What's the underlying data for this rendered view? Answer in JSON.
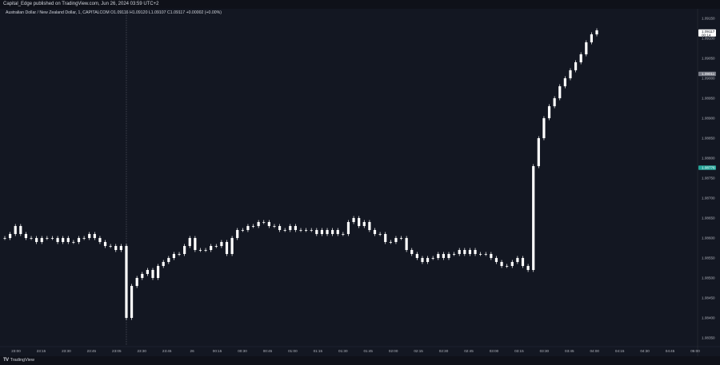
{
  "header": {
    "publisher_text": "Capital_Edge published on TradingView.com, Jun 26, 2024 03:59 UTC+2"
  },
  "legend": {
    "symbol": "Australian Dollar / New Zealand Dollar, 1, CAPITALCOM",
    "open": "O1.09116",
    "high": "H1.09120",
    "low": "L1.09107",
    "close": "C1.09117",
    "change": "+0.00002 (+0.00%)"
  },
  "footer": {
    "logo_text": "TradingView",
    "logo_glyph": "TV"
  },
  "price_labels": {
    "last_price": "1.09117",
    "countdown": "00:14",
    "gray_marker": "1.09011",
    "green_marker": "1.08776"
  },
  "colors": {
    "background": "#131722",
    "candle": "#ffffff",
    "grid": "#1e2230",
    "axis_text": "#b2b5be",
    "green_marker": "#26a69a",
    "gray_marker": "#787b86"
  },
  "chart_data": {
    "type": "candlestick",
    "title": "",
    "xlabel": "",
    "ylabel": "",
    "ylim": [
      1.0833,
      1.0917
    ],
    "grid": false,
    "x_ticks": [
      "23:00",
      "23:15",
      "23:30",
      "23:45",
      "23:05",
      "23:30",
      "23:45",
      "26",
      "00:15",
      "00:30",
      "00:45",
      "01:00",
      "01:15",
      "01:30",
      "01:45",
      "02:00",
      "02:15",
      "02:30",
      "02:45",
      "03:00",
      "03:15",
      "03:30",
      "03:45",
      "04:00",
      "04:15",
      "04:30",
      "04:45",
      "05:00"
    ],
    "y_ticks": [
      "1.09150",
      "1.09100",
      "1.09050",
      "1.09000",
      "1.08950",
      "1.08900",
      "1.08850",
      "1.08800",
      "1.08750",
      "1.08700",
      "1.08650",
      "1.08600",
      "1.08550",
      "1.08500",
      "1.08450",
      "1.08400",
      "1.08350"
    ],
    "series": [
      {
        "values": [
          1.086,
          1.0861,
          1.0863,
          1.0861,
          1.086,
          1.086,
          1.0859,
          1.086,
          1.086,
          1.086,
          1.0859,
          1.086,
          1.0859,
          1.0859,
          1.086,
          1.086,
          1.0861,
          1.086,
          1.0859,
          1.0858,
          1.0858,
          1.0857,
          1.0858,
          1.084,
          1.0848,
          1.085,
          1.0851,
          1.0852,
          1.085,
          1.0853,
          1.0854,
          1.0855,
          1.0856,
          1.0856,
          1.0858,
          1.086,
          1.0857,
          1.0857,
          1.0857,
          1.0858,
          1.0858,
          1.0859,
          1.0856,
          1.086,
          1.0862,
          1.0862,
          1.0863,
          1.0863,
          1.0864,
          1.0864,
          1.0863,
          1.0863,
          1.0862,
          1.0862,
          1.0863,
          1.0862,
          1.0862,
          1.0862,
          1.0862,
          1.0861,
          1.0862,
          1.0861,
          1.0862,
          1.0861,
          1.0861,
          1.0864,
          1.0865,
          1.0863,
          1.0864,
          1.0862,
          1.0861,
          1.0861,
          1.0859,
          1.0859,
          1.086,
          1.086,
          1.0857,
          1.0856,
          1.0855,
          1.0854,
          1.0855,
          1.0855,
          1.0856,
          1.0855,
          1.0856,
          1.0856,
          1.0857,
          1.0856,
          1.0857,
          1.0856,
          1.0856,
          1.0856,
          1.0855,
          1.0854,
          1.0853,
          1.0853,
          1.0854,
          1.0855,
          1.0853,
          1.0852,
          1.0878,
          1.0885,
          1.089,
          1.0893,
          1.0895,
          1.0898,
          1.09,
          1.0902,
          1.0904,
          1.0906,
          1.0909,
          1.0911,
          1.0912
        ],
        "start_time": "22:45",
        "interval_minutes": 1,
        "note_vertical_marker": "23:05"
      }
    ]
  }
}
